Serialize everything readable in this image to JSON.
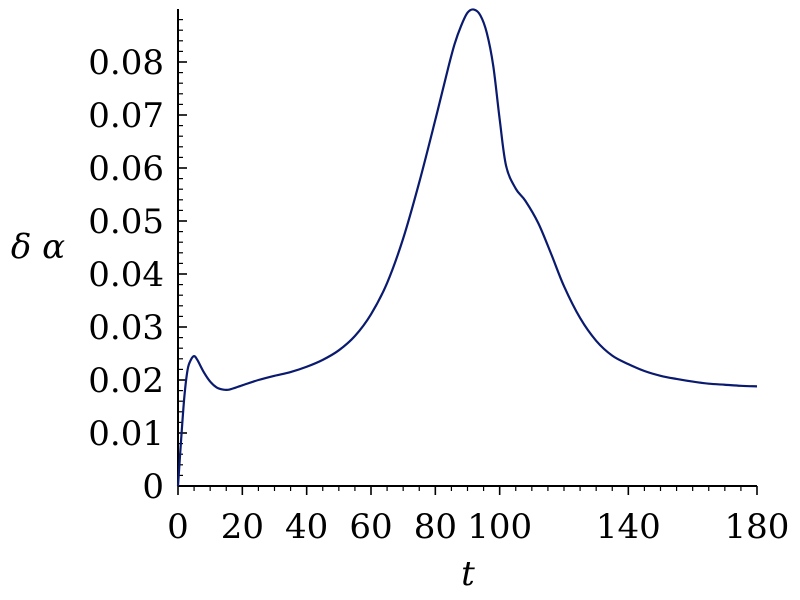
{
  "chart_data": {
    "type": "line",
    "title": "",
    "xlabel": "t",
    "ylabel": "δ α",
    "xlim": [
      0,
      180
    ],
    "ylim": [
      0,
      0.09
    ],
    "x_ticks": [
      0,
      20,
      40,
      60,
      80,
      100,
      140,
      180
    ],
    "x_tick_labels": [
      "0",
      "20",
      "40",
      "60",
      "80",
      "100",
      "140",
      "180"
    ],
    "y_ticks": [
      0,
      0.01,
      0.02,
      0.03,
      0.04,
      0.05,
      0.06,
      0.07,
      0.08
    ],
    "y_tick_labels": [
      "0",
      "0.01",
      "0.02",
      "0.03",
      "0.04",
      "0.05",
      "0.06",
      "0.07",
      "0.08"
    ],
    "grid": false,
    "line_color": "#0a1a6e",
    "series": [
      {
        "x": [
          0,
          1,
          2,
          3,
          4,
          5,
          6,
          8,
          10,
          12,
          14,
          16,
          20,
          25,
          30,
          35,
          40,
          45,
          50,
          55,
          60,
          65,
          70,
          75,
          80,
          84,
          86,
          88,
          90,
          92,
          94,
          96,
          98,
          100,
          102,
          105,
          108,
          112,
          116,
          120,
          125,
          130,
          135,
          140,
          145,
          150,
          155,
          160,
          165,
          170,
          175,
          180
        ],
        "y": [
          0.0,
          0.009,
          0.017,
          0.022,
          0.0238,
          0.0245,
          0.0238,
          0.0215,
          0.0197,
          0.0186,
          0.0182,
          0.0182,
          0.019,
          0.02,
          0.0208,
          0.0215,
          0.0225,
          0.0238,
          0.0256,
          0.0283,
          0.0324,
          0.0383,
          0.0467,
          0.0573,
          0.0691,
          0.0789,
          0.0834,
          0.0868,
          0.0893,
          0.0899,
          0.0888,
          0.0855,
          0.0793,
          0.0692,
          0.0604,
          0.0561,
          0.0538,
          0.0496,
          0.0438,
          0.0377,
          0.0317,
          0.0274,
          0.0246,
          0.023,
          0.0217,
          0.0208,
          0.0202,
          0.0197,
          0.0193,
          0.0191,
          0.0189,
          0.0188
        ]
      }
    ]
  }
}
